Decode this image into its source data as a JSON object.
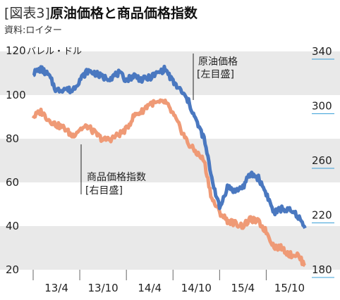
{
  "header": {
    "figure_label": "[図表3]",
    "title": "原油価格と商品価格指数",
    "source": "資料:ロイター"
  },
  "colors": {
    "crude": "#4a78c0",
    "commodity": "#ef9a76",
    "band": "#e9e9e9",
    "axis_underline": "#3aa0d8"
  },
  "chart_data": {
    "type": "line",
    "title": "原油価格と商品価格指数",
    "x_ticks": [
      "13/4",
      "13/10",
      "14/4",
      "14/10",
      "15/4",
      "15/10"
    ],
    "left_axis": {
      "unit": "バレル・ドル",
      "ticks": [
        120,
        100,
        80,
        60,
        40,
        20
      ],
      "range": [
        20,
        120
      ]
    },
    "right_axis": {
      "ticks": [
        340,
        300,
        260,
        220,
        180
      ],
      "range": [
        180,
        340
      ]
    },
    "grid_bands": true,
    "series": [
      {
        "name": "原油価格",
        "axis_note": "[左目盛]",
        "axis": "left",
        "x": [
          "2013-01",
          "2013-02",
          "2013-03",
          "2013-04",
          "2013-05",
          "2013-06",
          "2013-07",
          "2013-08",
          "2013-09",
          "2013-10",
          "2013-11",
          "2013-12",
          "2014-01",
          "2014-02",
          "2014-03",
          "2014-04",
          "2014-05",
          "2014-06",
          "2014-07",
          "2014-08",
          "2014-09",
          "2014-10",
          "2014-11",
          "2014-12",
          "2015-01",
          "2015-02",
          "2015-03",
          "2015-04",
          "2015-05",
          "2015-06",
          "2015-07",
          "2015-08",
          "2015-09",
          "2015-10",
          "2015-11",
          "2015-12"
        ],
        "values": [
          110,
          112,
          109,
          102,
          103,
          102,
          107,
          111,
          110,
          108,
          108,
          110,
          107,
          109,
          107,
          108,
          110,
          112,
          106,
          102,
          97,
          88,
          80,
          62,
          48,
          58,
          56,
          58,
          64,
          62,
          55,
          46,
          48,
          47,
          45,
          39
        ]
      },
      {
        "name": "商品価格指数",
        "axis_note": "[右目盛]",
        "axis": "right",
        "x": [
          "2013-01",
          "2013-02",
          "2013-03",
          "2013-04",
          "2013-05",
          "2013-06",
          "2013-07",
          "2013-08",
          "2013-09",
          "2013-10",
          "2013-11",
          "2013-12",
          "2014-01",
          "2014-02",
          "2014-03",
          "2014-04",
          "2014-05",
          "2014-06",
          "2014-07",
          "2014-08",
          "2014-09",
          "2014-10",
          "2014-11",
          "2014-12",
          "2015-01",
          "2015-02",
          "2015-03",
          "2015-04",
          "2015-05",
          "2015-06",
          "2015-07",
          "2015-08",
          "2015-09",
          "2015-10",
          "2015-11",
          "2015-12"
        ],
        "values": [
          292,
          296,
          290,
          286,
          284,
          278,
          283,
          285,
          280,
          275,
          276,
          279,
          283,
          293,
          296,
          302,
          302,
          303,
          294,
          283,
          272,
          266,
          260,
          232,
          222,
          216,
          214,
          212,
          217,
          215,
          208,
          197,
          196,
          191,
          191,
          183
        ]
      }
    ]
  }
}
